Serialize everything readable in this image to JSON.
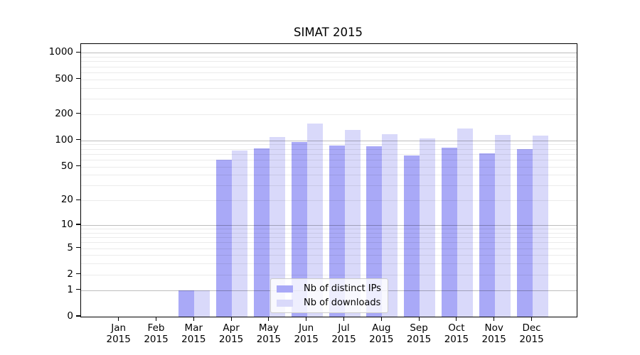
{
  "chart_data": {
    "type": "bar",
    "title": "SIMAT 2015",
    "x_tick_months": [
      "Jan",
      "Feb",
      "Mar",
      "Apr",
      "May",
      "Jun",
      "Jul",
      "Aug",
      "Sep",
      "Oct",
      "Nov",
      "Dec"
    ],
    "x_tick_year": "2015",
    "series": [
      {
        "name": "Nb of distinct IPs",
        "color": "#a9a9f7",
        "values": [
          0,
          0,
          1,
          60,
          81,
          96,
          88,
          85,
          67,
          82,
          71,
          80
        ]
      },
      {
        "name": "Nb of downloads",
        "color": "#d9d9fa",
        "values": [
          0,
          0,
          1,
          77,
          110,
          155,
          132,
          118,
          106,
          137,
          115,
          114
        ]
      }
    ],
    "y_scale": "log(v+1)",
    "y_ticks": [
      0,
      1,
      2,
      5,
      10,
      20,
      50,
      100,
      200,
      500,
      1000
    ],
    "ylim": [
      0,
      1259
    ],
    "grid_major": [
      1,
      10,
      100,
      1000
    ],
    "grid_minor": [
      2,
      3,
      4,
      5,
      6,
      7,
      8,
      9,
      20,
      30,
      40,
      50,
      60,
      70,
      80,
      90,
      200,
      300,
      400,
      500,
      600,
      700,
      800,
      900
    ],
    "grid": "on",
    "legend_position": "lower center inside plot",
    "spine_color": "#000000"
  }
}
